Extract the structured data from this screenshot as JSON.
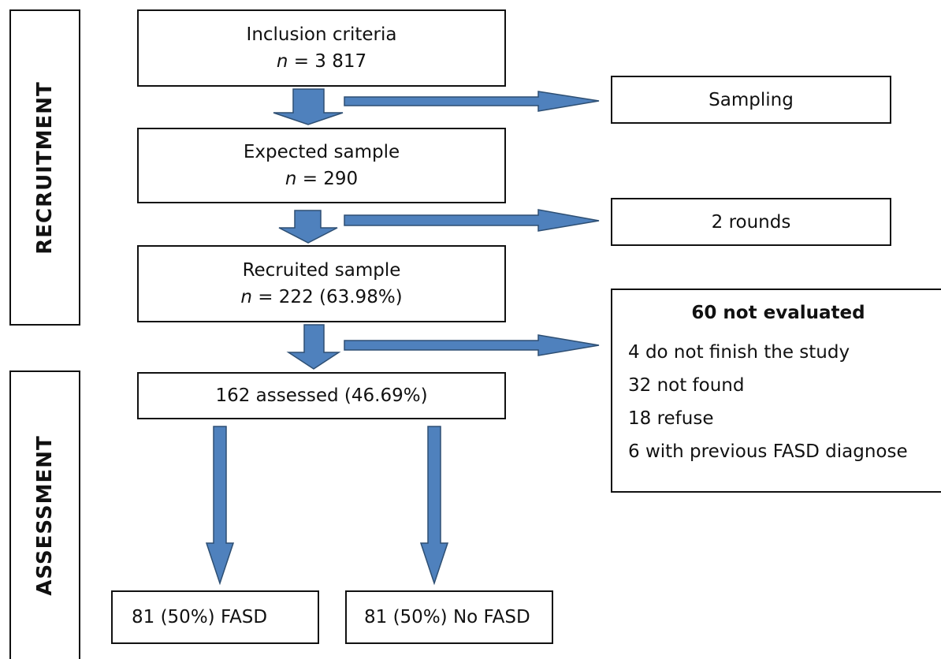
{
  "side_labels": {
    "recruitment": "RECRUITMENT",
    "assessment": "ASSESSMENT"
  },
  "boxes": {
    "inclusion": {
      "title": "Inclusion criteria",
      "n_label": "n",
      "n_value": " = 3 817"
    },
    "sampling": "Sampling",
    "expected": {
      "title": "Expected sample",
      "n_label": "n",
      "n_value": " = 290"
    },
    "rounds": "2 rounds",
    "recruited": {
      "title": "Recruited sample",
      "n_label": "n",
      "n_value": " = 222 (63.98%)"
    },
    "assessed": "162 assessed (46.69%)",
    "not_evaluated": {
      "title": "60 not evaluated",
      "items": [
        "4 do not finish the study",
        "32 not found",
        "18 refuse",
        "6 with previous FASD diagnose"
      ]
    },
    "fasd": "81 (50%) FASD",
    "no_fasd": "81 (50%) No FASD"
  },
  "colors": {
    "arrow_fill": "#4f81bd",
    "arrow_stroke": "#2e4f73",
    "border": "#111111"
  }
}
